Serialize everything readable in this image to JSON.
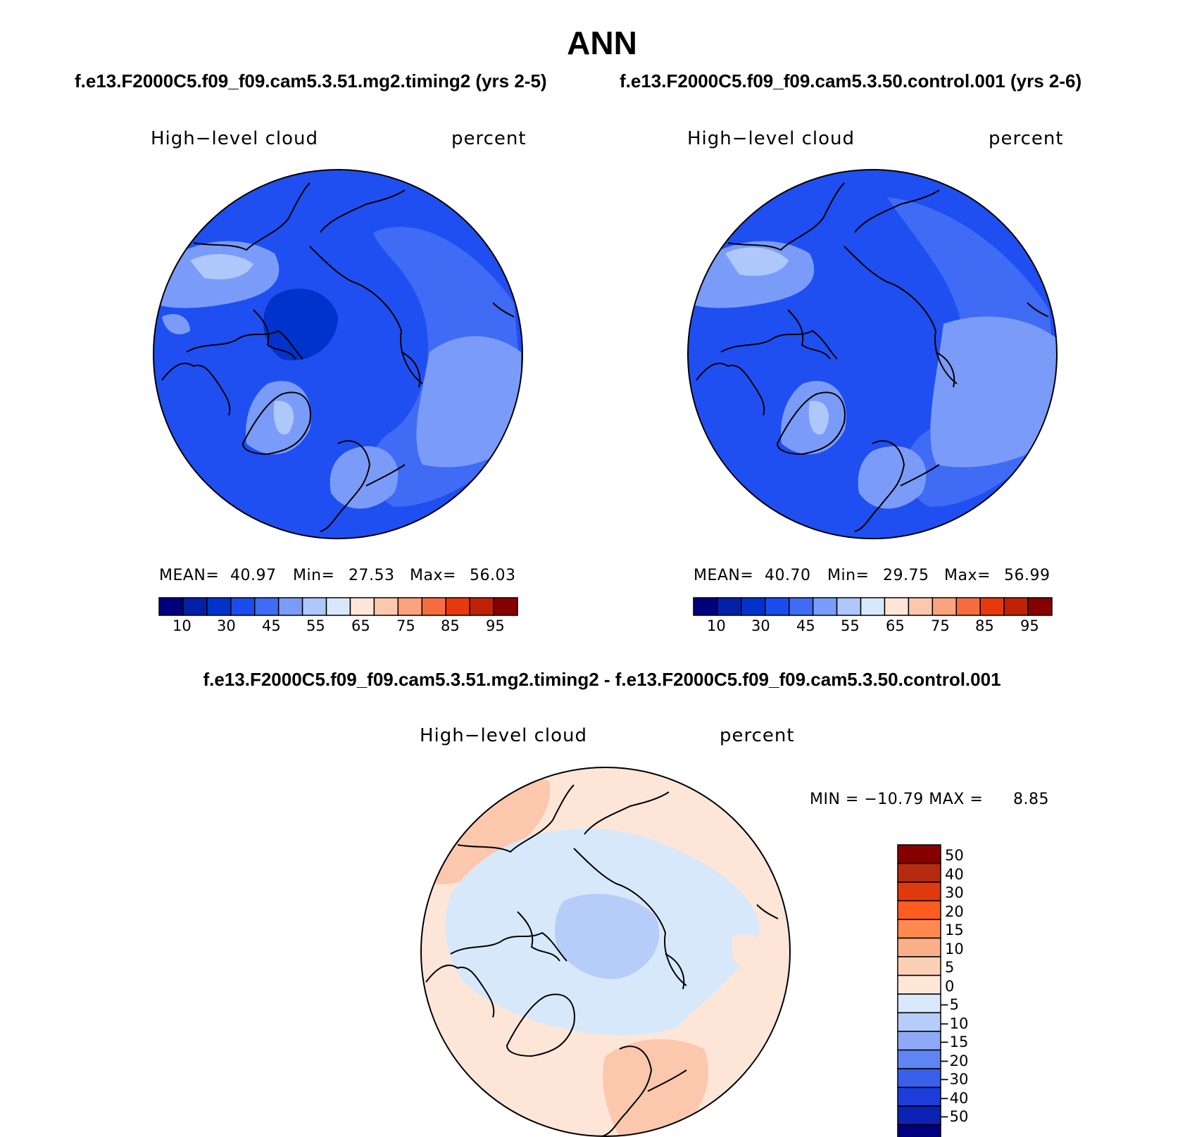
{
  "title": "ANN",
  "panels": [
    {
      "case": "f.e13.F2000C5.f09_f09.cam5.3.51.mg2.timing2 (yrs 2-5)",
      "variable": "High−level cloud",
      "units": "percent",
      "mean_label": "MEAN=",
      "mean": "40.97",
      "min_label": "Min=",
      "min": "27.53",
      "max_label": "Max=",
      "max": "56.03"
    },
    {
      "case": "f.e13.F2000C5.f09_f09.cam5.3.50.control.001 (yrs 2-6)",
      "variable": "High−level cloud",
      "units": "percent",
      "mean_label": "MEAN=",
      "mean": "40.70",
      "min_label": "Min=",
      "min": "29.75",
      "max_label": "Max=",
      "max": "56.99"
    }
  ],
  "abs_colorbar": {
    "colors": [
      "#00007f",
      "#0020a8",
      "#0033cc",
      "#1a4cee",
      "#3f6bf5",
      "#7a9cf8",
      "#aec8fb",
      "#d8e8fb",
      "#fde6d8",
      "#fcc8ad",
      "#fba27e",
      "#f86d40",
      "#e8380e",
      "#bf2106",
      "#870000"
    ],
    "labels": [
      "10",
      "30",
      "45",
      "55",
      "65",
      "75",
      "85",
      "95"
    ]
  },
  "diff": {
    "title": "f.e13.F2000C5.f09_f09.cam5.3.51.mg2.timing2 - f.e13.F2000C5.f09_f09.cam5.3.50.control.001",
    "variable": "High−level cloud",
    "units": "percent",
    "minmax_label": "MIN = −10.79 MAX =",
    "max": "8.85",
    "colorbar": {
      "colors_top_to_bottom": [
        "#870000",
        "#b52a10",
        "#e03a0c",
        "#ff5c22",
        "#ff8a50",
        "#fbaf88",
        "#fcd0b6",
        "#fde8d8",
        "#d9e9fb",
        "#b5cdf8",
        "#8eaaf7",
        "#5f84f3",
        "#3860ea",
        "#1c3dd9",
        "#0b22b5",
        "#00007f"
      ],
      "labels": [
        "50",
        "40",
        "30",
        "20",
        "15",
        "10",
        "5",
        "0",
        "−5",
        "−10",
        "−15",
        "−20",
        "−30",
        "−40",
        "−50"
      ]
    }
  }
}
